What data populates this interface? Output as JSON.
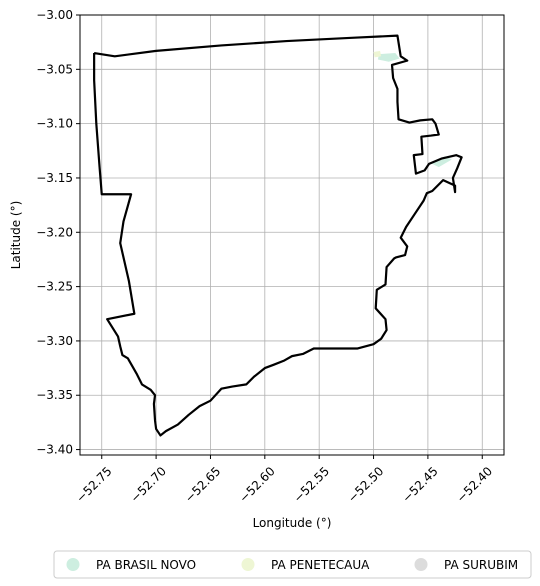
{
  "chart_data": {
    "type": "map",
    "xlabel": "Longitude (°)",
    "ylabel": "Latitude (°)",
    "xlim": [
      -52.77,
      -52.38
    ],
    "ylim": [
      -3.405,
      -3.0
    ],
    "grid": true,
    "legend_placement": "bottom-center",
    "x_ticks": [
      {
        "value": -52.75,
        "label": "−52.75"
      },
      {
        "value": -52.7,
        "label": "−52.70"
      },
      {
        "value": -52.65,
        "label": "−52.65"
      },
      {
        "value": -52.6,
        "label": "−52.60"
      },
      {
        "value": -52.55,
        "label": "−52.55"
      },
      {
        "value": -52.5,
        "label": "−52.50"
      },
      {
        "value": -52.45,
        "label": "−52.45"
      },
      {
        "value": -52.4,
        "label": "−52.40"
      }
    ],
    "y_ticks": [
      {
        "value": -3.0,
        "label": "−3.00"
      },
      {
        "value": -3.05,
        "label": "−3.05"
      },
      {
        "value": -3.1,
        "label": "−3.10"
      },
      {
        "value": -3.15,
        "label": "−3.15"
      },
      {
        "value": -3.2,
        "label": "−3.20"
      },
      {
        "value": -3.25,
        "label": "−3.25"
      },
      {
        "value": -3.3,
        "label": "−3.30"
      },
      {
        "value": -3.35,
        "label": "−3.35"
      },
      {
        "value": -3.4,
        "label": "−3.40"
      }
    ],
    "legend": [
      {
        "label": "PA BRASIL NOVO",
        "color": "#cdeee0"
      },
      {
        "label": "PA PENETECAUA",
        "color": "#eef6d4"
      },
      {
        "label": "PA SURUBIM",
        "color": "#dcdcdc"
      }
    ],
    "boundary": [
      [
        -52.757,
        -3.035
      ],
      [
        -52.738,
        -3.038
      ],
      [
        -52.7,
        -3.033
      ],
      [
        -52.64,
        -3.028
      ],
      [
        -52.58,
        -3.024
      ],
      [
        -52.52,
        -3.021
      ],
      [
        -52.478,
        -3.019
      ],
      [
        -52.475,
        -3.038
      ],
      [
        -52.469,
        -3.042
      ],
      [
        -52.483,
        -3.046
      ],
      [
        -52.482,
        -3.058
      ],
      [
        -52.478,
        -3.068
      ],
      [
        -52.478,
        -3.08
      ],
      [
        -52.477,
        -3.096
      ],
      [
        -52.467,
        -3.099
      ],
      [
        -52.457,
        -3.097
      ],
      [
        -52.446,
        -3.096
      ],
      [
        -52.443,
        -3.1
      ],
      [
        -52.44,
        -3.11
      ],
      [
        -52.447,
        -3.111
      ],
      [
        -52.456,
        -3.112
      ],
      [
        -52.455,
        -3.128
      ],
      [
        -52.463,
        -3.129
      ],
      [
        -52.461,
        -3.146
      ],
      [
        -52.453,
        -3.143
      ],
      [
        -52.449,
        -3.137
      ],
      [
        -52.437,
        -3.132
      ],
      [
        -52.424,
        -3.129
      ],
      [
        -52.419,
        -3.131
      ],
      [
        -52.423,
        -3.141
      ],
      [
        -52.427,
        -3.15
      ],
      [
        -52.425,
        -3.163
      ],
      [
        -52.425,
        -3.157
      ],
      [
        -52.436,
        -3.152
      ],
      [
        -52.446,
        -3.162
      ],
      [
        -52.451,
        -3.164
      ],
      [
        -52.454,
        -3.171
      ],
      [
        -52.462,
        -3.183
      ],
      [
        -52.47,
        -3.195
      ],
      [
        -52.475,
        -3.205
      ],
      [
        -52.469,
        -3.213
      ],
      [
        -52.471,
        -3.221
      ],
      [
        -52.479,
        -3.223
      ],
      [
        -52.481,
        -3.224
      ],
      [
        -52.488,
        -3.232
      ],
      [
        -52.489,
        -3.248
      ],
      [
        -52.497,
        -3.253
      ],
      [
        -52.498,
        -3.27
      ],
      [
        -52.489,
        -3.28
      ],
      [
        -52.488,
        -3.29
      ],
      [
        -52.493,
        -3.298
      ],
      [
        -52.5,
        -3.303
      ],
      [
        -52.515,
        -3.307
      ],
      [
        -52.535,
        -3.307
      ],
      [
        -52.555,
        -3.307
      ],
      [
        -52.565,
        -3.312
      ],
      [
        -52.575,
        -3.314
      ],
      [
        -52.582,
        -3.318
      ],
      [
        -52.592,
        -3.322
      ],
      [
        -52.6,
        -3.325
      ],
      [
        -52.61,
        -3.333
      ],
      [
        -52.617,
        -3.34
      ],
      [
        -52.63,
        -3.342
      ],
      [
        -52.64,
        -3.344
      ],
      [
        -52.65,
        -3.355
      ],
      [
        -52.66,
        -3.36
      ],
      [
        -52.67,
        -3.368
      ],
      [
        -52.68,
        -3.377
      ],
      [
        -52.691,
        -3.383
      ],
      [
        -52.696,
        -3.387
      ],
      [
        -52.7,
        -3.381
      ],
      [
        -52.701,
        -3.373
      ],
      [
        -52.702,
        -3.358
      ],
      [
        -52.701,
        -3.35
      ],
      [
        -52.705,
        -3.345
      ],
      [
        -52.713,
        -3.34
      ],
      [
        -52.718,
        -3.33
      ],
      [
        -52.722,
        -3.323
      ],
      [
        -52.726,
        -3.316
      ],
      [
        -52.731,
        -3.313
      ],
      [
        -52.733,
        -3.305
      ],
      [
        -52.735,
        -3.296
      ],
      [
        -52.745,
        -3.28
      ],
      [
        -52.72,
        -3.275
      ],
      [
        -52.725,
        -3.245
      ],
      [
        -52.733,
        -3.21
      ],
      [
        -52.73,
        -3.19
      ],
      [
        -52.723,
        -3.165
      ],
      [
        -52.75,
        -3.165
      ],
      [
        -52.752,
        -3.14
      ],
      [
        -52.755,
        -3.1
      ],
      [
        -52.757,
        -3.06
      ],
      [
        -52.757,
        -3.035
      ]
    ],
    "patches": [
      {
        "name": "PA BRASIL NOVO",
        "color": "#cdeee0",
        "points": [
          [
            -52.495,
            -3.036
          ],
          [
            -52.48,
            -3.035
          ],
          [
            -52.476,
            -3.04
          ],
          [
            -52.486,
            -3.043
          ],
          [
            -52.496,
            -3.041
          ]
        ]
      },
      {
        "name": "PA BRASIL NOVO",
        "color": "#cdeee0",
        "points": [
          [
            -52.448,
            -3.136
          ],
          [
            -52.434,
            -3.13
          ],
          [
            -52.428,
            -3.133
          ],
          [
            -52.44,
            -3.14
          ]
        ]
      },
      {
        "name": "PA PENETECAUA",
        "color": "#eef6d4",
        "points": [
          [
            -52.5,
            -3.034
          ],
          [
            -52.494,
            -3.033
          ],
          [
            -52.493,
            -3.038
          ],
          [
            -52.499,
            -3.039
          ]
        ]
      }
    ]
  }
}
